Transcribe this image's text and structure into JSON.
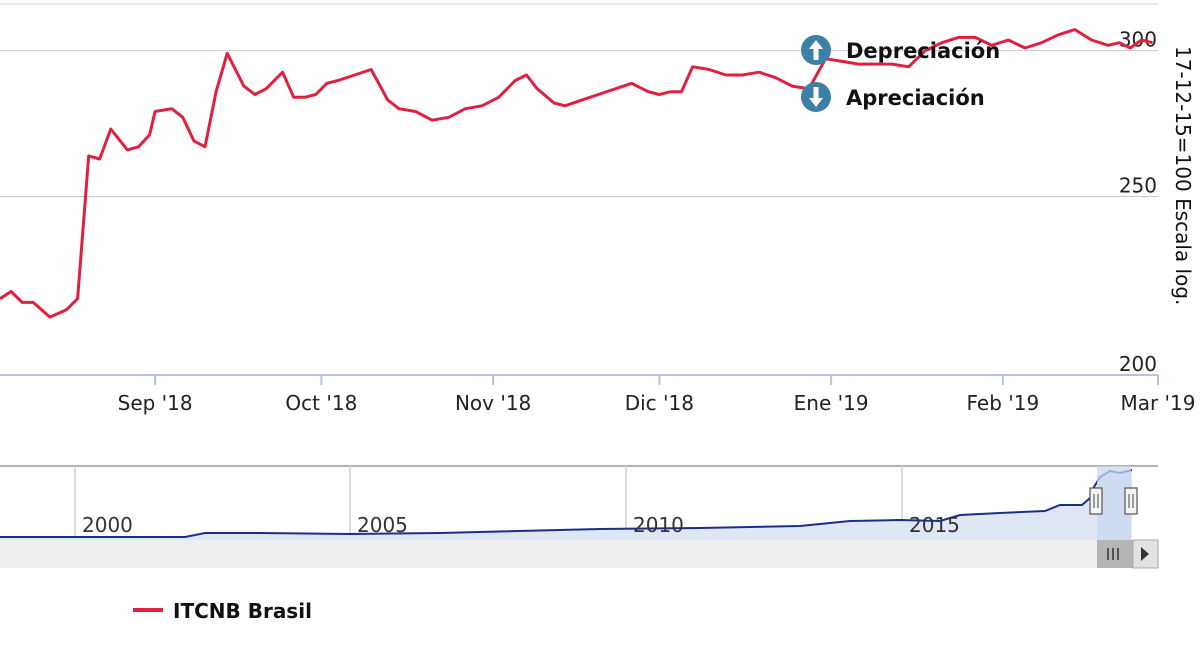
{
  "chart_data": {
    "type": "line",
    "ylabel": "17-12-15=100 Escala log.",
    "yscale": "log",
    "ylim": [
      200,
      318
    ],
    "yticks": [
      200,
      250,
      300
    ],
    "xlim": [
      "2018-08-04",
      "2019-03-01"
    ],
    "xticks": [
      {
        "date": "2018-09-01",
        "label": "Sep '18"
      },
      {
        "date": "2018-10-01",
        "label": "Oct '18"
      },
      {
        "date": "2018-11-01",
        "label": "Nov '18"
      },
      {
        "date": "2018-12-01",
        "label": "Dic '18"
      },
      {
        "date": "2019-01-01",
        "label": "Ene '19"
      },
      {
        "date": "2019-02-01",
        "label": "Feb '19"
      },
      {
        "date": "2019-03-01",
        "label": "Mar '19"
      }
    ],
    "series": [
      {
        "name": "ITCNB Brasil",
        "color": "#e0203e",
        "x": [
          "2018-08-04",
          "2018-08-06",
          "2018-08-08",
          "2018-08-10",
          "2018-08-13",
          "2018-08-16",
          "2018-08-18",
          "2018-08-20",
          "2018-08-22",
          "2018-08-24",
          "2018-08-27",
          "2018-08-29",
          "2018-08-31",
          "2018-09-01",
          "2018-09-04",
          "2018-09-06",
          "2018-09-08",
          "2018-09-10",
          "2018-09-12",
          "2018-09-14",
          "2018-09-17",
          "2018-09-19",
          "2018-09-21",
          "2018-09-24",
          "2018-09-26",
          "2018-09-28",
          "2018-09-30",
          "2018-10-02",
          "2018-10-04",
          "2018-10-07",
          "2018-10-10",
          "2018-10-13",
          "2018-10-15",
          "2018-10-18",
          "2018-10-21",
          "2018-10-24",
          "2018-10-27",
          "2018-10-30",
          "2018-11-02",
          "2018-11-05",
          "2018-11-07",
          "2018-11-09",
          "2018-11-12",
          "2018-11-14",
          "2018-11-17",
          "2018-11-20",
          "2018-11-23",
          "2018-11-26",
          "2018-11-29",
          "2018-12-01",
          "2018-12-03",
          "2018-12-05",
          "2018-12-07",
          "2018-12-10",
          "2018-12-13",
          "2018-12-16",
          "2018-12-19",
          "2018-12-22",
          "2018-12-25",
          "2018-12-28",
          "2018-12-31",
          "2019-01-03",
          "2019-01-06",
          "2019-01-09",
          "2019-01-12",
          "2019-01-15",
          "2019-01-18",
          "2019-01-21",
          "2019-01-24",
          "2019-01-27",
          "2019-01-30",
          "2019-02-02",
          "2019-02-05",
          "2019-02-08",
          "2019-02-11",
          "2019-02-14",
          "2019-02-17",
          "2019-02-20",
          "2019-02-22",
          "2019-02-24",
          "2019-02-26",
          "2019-02-28"
        ],
        "values": [
          220,
          222,
          219,
          219,
          215,
          217,
          220,
          263,
          262,
          272,
          265,
          266,
          270,
          278,
          279,
          276,
          268,
          266,
          285,
          299,
          287,
          284,
          286,
          292,
          283,
          283,
          284,
          288,
          289,
          291,
          293,
          282,
          279,
          278,
          275,
          276,
          279,
          280,
          283,
          289,
          291,
          286,
          281,
          280,
          282,
          284,
          286,
          288,
          285,
          284,
          285,
          285,
          294,
          293,
          291,
          291,
          292,
          290,
          287,
          286,
          297,
          296,
          295,
          295,
          295,
          294,
          300,
          303,
          305,
          305,
          302,
          304,
          301,
          303,
          306,
          308,
          304,
          302,
          303,
          301,
          304,
          303
        ]
      }
    ],
    "legend_markers": [
      {
        "label": "Depreciación",
        "icon": "arrow-up-icon",
        "color": "#3c7fa7"
      },
      {
        "label": "Apreciación",
        "icon": "arrow-down-icon",
        "color": "#3c7fa7"
      }
    ],
    "navigator": {
      "year_labels": [
        "2000",
        "2005",
        "2010",
        "2015"
      ],
      "color": "#1a2f8c"
    }
  }
}
